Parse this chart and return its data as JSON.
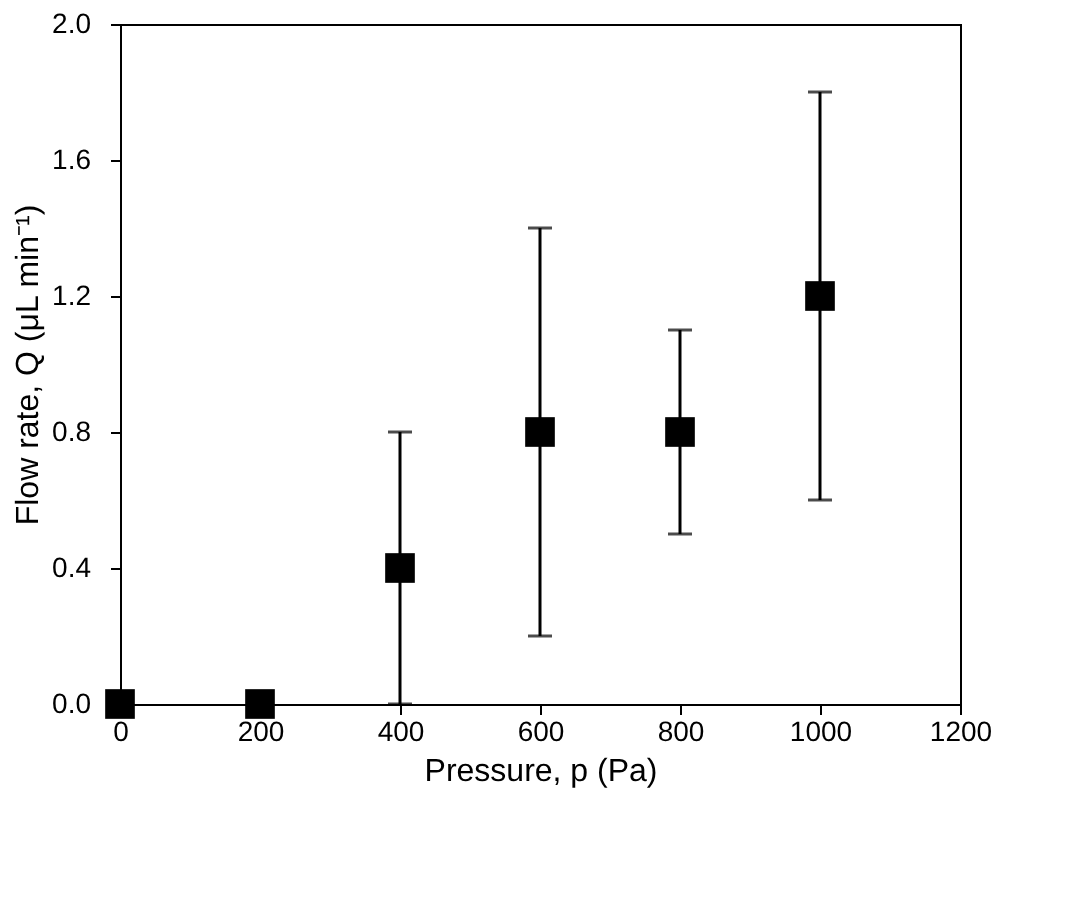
{
  "chart_data": {
    "type": "scatter",
    "xlabel": "Pressure, p (Pa)",
    "ylabel": "Flow rate, Q (μL min⁻¹)",
    "x": [
      0,
      200,
      400,
      600,
      800,
      1000
    ],
    "values": [
      0,
      0,
      0.4,
      0.8,
      0.8,
      1.2
    ],
    "errors": [
      null,
      null,
      [
        0,
        0.8
      ],
      [
        0.2,
        1.4
      ],
      [
        0.5,
        1.1
      ],
      [
        0.6,
        1.8
      ]
    ],
    "color": "#000000",
    "marker": "square",
    "grid": false,
    "xlim": [
      0,
      1200
    ],
    "xticks": [
      0,
      200,
      400,
      600,
      800,
      1000,
      1200
    ],
    "ylim": [
      0,
      2.0
    ],
    "yticks": [
      {
        "value": 0,
        "label": "0.0"
      },
      {
        "value": 0.4,
        "label": "0.4"
      },
      {
        "value": 0.8,
        "label": "0.8"
      },
      {
        "value": 1.2,
        "label": "1.2"
      },
      {
        "value": 1.6,
        "label": "1.6"
      },
      {
        "value": 2,
        "label": "2.0"
      }
    ]
  }
}
